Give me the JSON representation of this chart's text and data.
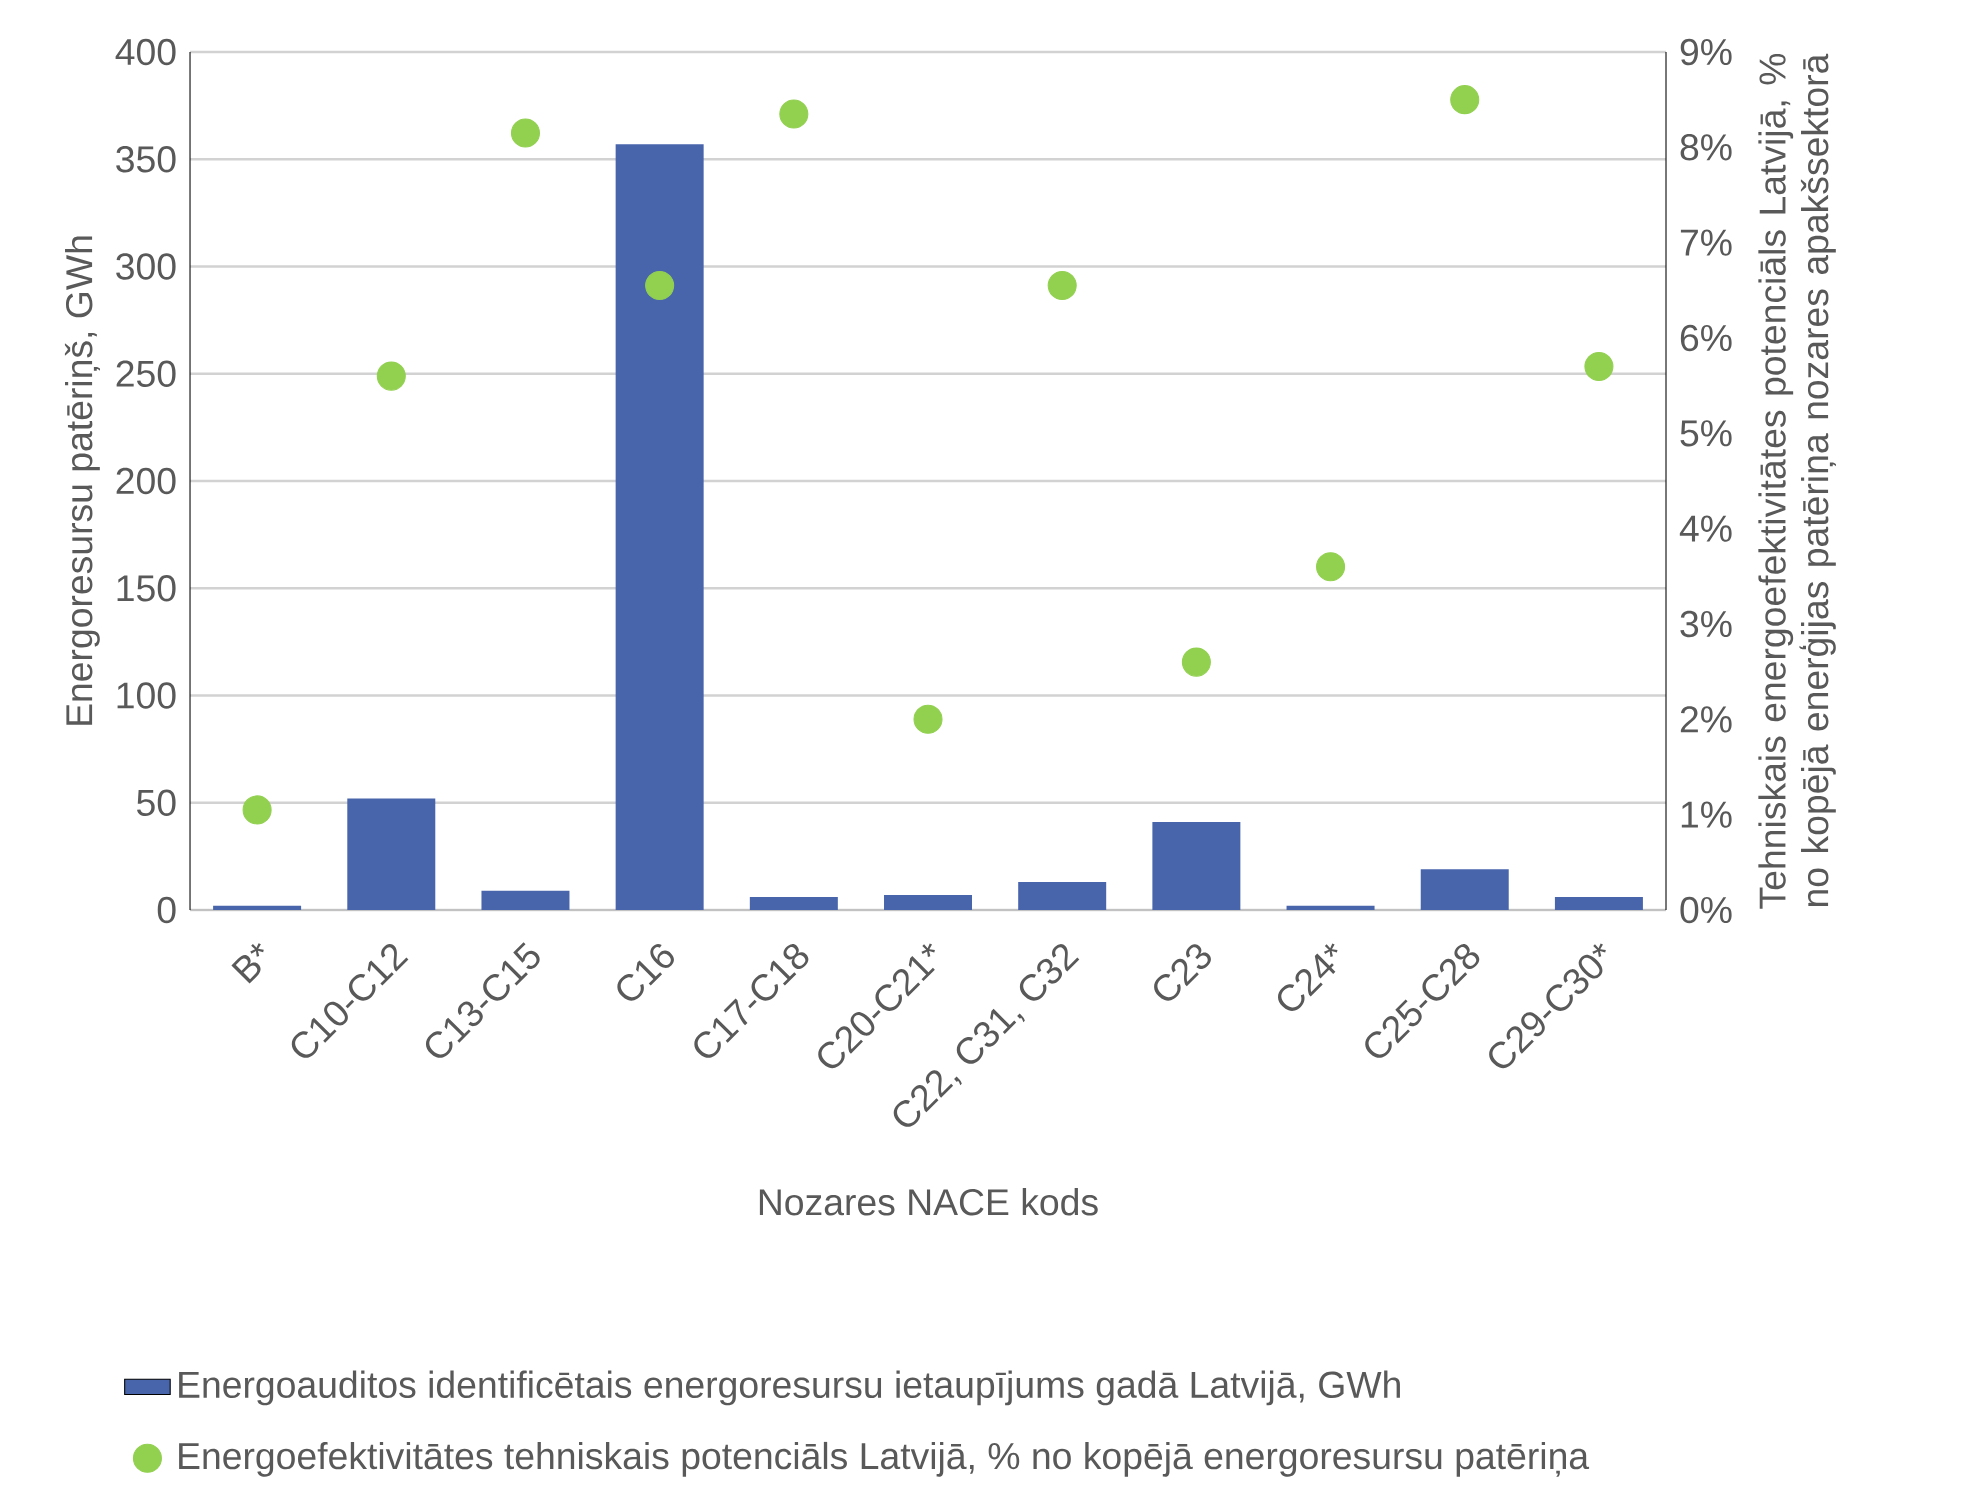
{
  "chart_data": {
    "type": "bar",
    "xlabel": "Nozares NACE kods",
    "ylabel": "Energoresursu patēriņš, GWh",
    "y2label": "Tehniskais energoefektivitātes potenciāls Latvijā, % no kopējā enerģijas patēriņa nozares apakšsektorā",
    "categories": [
      "B*",
      "C10-C12",
      "C13-C15",
      "C16",
      "C17-C18",
      "C20-C21*",
      "C22, C31, C32",
      "C23",
      "C24*",
      "C25-C28",
      "C29-C30*"
    ],
    "series": [
      {
        "name": "Energoauditos identificētais energoresursu ietaupījums gadā Latvijā, GWh",
        "color": "#4865ac",
        "values": [
          2,
          52,
          9,
          357,
          6,
          7,
          13,
          41,
          2,
          19,
          6
        ]
      },
      {
        "name": "Energoefektivitātes tehniskais potenciāls Latvijā, % no kopējā energoresursu patēriņa",
        "color": "#92d050",
        "type": "scatter",
        "axis": "y2",
        "marker": "circle",
        "values": [
          1.05,
          5.6,
          8.15,
          6.55,
          8.35,
          2.0,
          6.55,
          2.6,
          3.6,
          8.5,
          5.7
        ]
      }
    ],
    "ylim": [
      0,
      400
    ],
    "yticks": [
      0,
      50,
      100,
      150,
      200,
      250,
      300,
      350,
      400
    ],
    "y2lim": [
      0,
      9
    ],
    "y2ticks": [
      {
        "value": 0,
        "label": "0%"
      },
      {
        "value": 1,
        "label": "1%"
      },
      {
        "value": 2,
        "label": "2%"
      },
      {
        "value": 3,
        "label": "3%"
      },
      {
        "value": 4,
        "label": "4%"
      },
      {
        "value": 5,
        "label": "5%"
      },
      {
        "value": 6,
        "label": "6%"
      },
      {
        "value": 7,
        "label": "7%"
      },
      {
        "value": 8,
        "label": "8%"
      },
      {
        "value": 9,
        "label": "9%"
      }
    ],
    "grid": "y",
    "legend": "bottom"
  }
}
